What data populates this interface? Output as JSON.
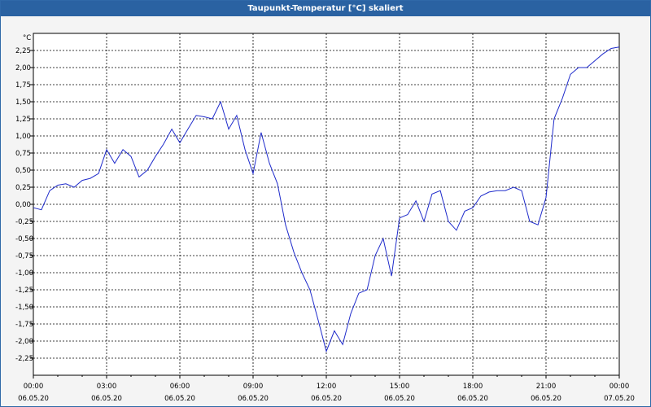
{
  "window": {
    "title": "Taupunkt-Temperatur [°C] skaliert"
  },
  "chart_data": {
    "type": "line",
    "unit_label": "°C",
    "series": [
      {
        "color": "#1f2bcb",
        "x_hours": [
          0,
          0.33,
          0.67,
          1.0,
          1.33,
          1.67,
          2.0,
          2.33,
          2.67,
          3.0,
          3.33,
          3.67,
          4.0,
          4.33,
          4.67,
          5.0,
          5.33,
          5.67,
          6.0,
          6.33,
          6.67,
          7.0,
          7.33,
          7.67,
          8.0,
          8.33,
          8.67,
          9.0,
          9.33,
          9.67,
          10.0,
          10.33,
          10.67,
          11.0,
          11.33,
          11.67,
          12.0,
          12.33,
          12.67,
          13.0,
          13.33,
          13.67,
          14.0,
          14.33,
          14.67,
          15.0,
          15.33,
          15.67,
          16.0,
          16.33,
          16.67,
          17.0,
          17.33,
          17.67,
          18.0,
          18.33,
          18.67,
          19.0,
          19.33,
          19.67,
          20.0,
          20.33,
          20.67,
          21.0,
          21.33,
          21.67,
          22.0,
          22.33,
          22.67,
          23.0,
          23.33,
          23.67,
          24.0
        ],
        "y": [
          -0.05,
          -0.08,
          0.2,
          0.28,
          0.3,
          0.25,
          0.35,
          0.38,
          0.45,
          0.8,
          0.6,
          0.8,
          0.7,
          0.4,
          0.5,
          0.7,
          0.88,
          1.1,
          0.9,
          1.1,
          1.3,
          1.28,
          1.25,
          1.5,
          1.1,
          1.3,
          0.8,
          0.45,
          1.05,
          0.6,
          0.3,
          -0.3,
          -0.7,
          -1.0,
          -1.25,
          -1.7,
          -2.15,
          -1.85,
          -2.05,
          -1.6,
          -1.3,
          -1.25,
          -0.75,
          -0.5,
          -1.05,
          -0.2,
          -0.15,
          0.05,
          -0.25,
          0.15,
          0.2,
          -0.25,
          -0.38,
          -0.1,
          -0.05,
          0.12,
          0.18,
          0.2,
          0.2,
          0.25,
          0.2,
          -0.25,
          -0.3,
          0.1,
          1.25,
          1.55,
          1.9,
          2.0,
          2.0,
          2.1,
          2.2,
          2.28,
          2.3
        ]
      }
    ],
    "xlim": [
      0,
      24
    ],
    "ylim": [
      -2.5,
      2.5
    ],
    "x_ticks": [
      {
        "pos": 0,
        "time": "00:00",
        "date": "06.05.20"
      },
      {
        "pos": 3,
        "time": "03:00",
        "date": "06.05.20"
      },
      {
        "pos": 6,
        "time": "06:00",
        "date": "06.05.20"
      },
      {
        "pos": 9,
        "time": "09:00",
        "date": "06.05.20"
      },
      {
        "pos": 12,
        "time": "12:00",
        "date": "06.05.20"
      },
      {
        "pos": 15,
        "time": "15:00",
        "date": "06.05.20"
      },
      {
        "pos": 18,
        "time": "18:00",
        "date": "06.05.20"
      },
      {
        "pos": 21,
        "time": "21:00",
        "date": "06.05.20"
      },
      {
        "pos": 24,
        "time": "00:00",
        "date": "07.05.20"
      }
    ],
    "y_ticks": [
      2.25,
      2.0,
      1.75,
      1.5,
      1.25,
      1.0,
      0.75,
      0.5,
      0.25,
      0.0,
      -0.25,
      -0.5,
      -0.75,
      -1.0,
      -1.25,
      -1.5,
      -1.75,
      -2.0,
      -2.25
    ],
    "y_tick_labels": [
      "2,25",
      "2,00",
      "1,75",
      "1,50",
      "1,25",
      "1,00",
      "0,75",
      "0,50",
      "0,25",
      "0,00",
      "-0,25",
      "-0,50",
      "-0,75",
      "-1,00",
      "-1,25",
      "-1,50",
      "-1,75",
      "-2,00",
      "-2,25"
    ],
    "grid": true,
    "grid_style": "dashed"
  }
}
